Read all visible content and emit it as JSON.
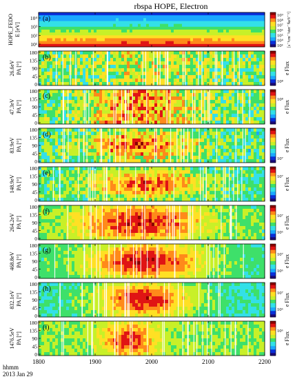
{
  "chart_data": {
    "type": "heatmap",
    "title": "rbspa HOPE, Electron",
    "x_axis": {
      "range": [
        1800,
        2200
      ],
      "ticks": [
        "1800",
        "1900",
        "2000",
        "2100",
        "2200"
      ],
      "label_time": "hhmm",
      "label_date": "2013 Jan 29"
    },
    "panels": [
      {
        "letter": "(a)",
        "ylabel": [
          "HOPE_FEDO",
          "E [eV]"
        ],
        "yticks": [
          "10⁴",
          "10³",
          "10²",
          "10¹"
        ],
        "cbar_label": "[s⁻¹cm⁻²ster⁻¹keV⁻¹]",
        "cbar_ticks": [
          "10⁹",
          "10⁸",
          "10⁷",
          "10⁶",
          "10⁵",
          "10⁴",
          "10³"
        ]
      },
      {
        "letter": "(b)",
        "ylabel": [
          "26.6eV",
          "PA [°]"
        ],
        "yticks": [
          "180",
          "135",
          "90",
          "45",
          "0"
        ],
        "cbar_label": "e Flux",
        "cbar_ticks": [
          "10⁸"
        ]
      },
      {
        "letter": "(c)",
        "ylabel": [
          "47.3eV",
          "PA [°]"
        ],
        "yticks": [
          "180",
          "135",
          "90",
          "45",
          "0"
        ],
        "cbar_label": "e Flux",
        "cbar_ticks": [
          "10⁸"
        ]
      },
      {
        "letter": "(d)",
        "ylabel": [
          "83.9eV",
          "PA [°]"
        ],
        "yticks": [
          "180",
          "135",
          "90",
          "45",
          "0"
        ],
        "cbar_label": "e Flux",
        "cbar_ticks": [
          "10⁷"
        ]
      },
      {
        "letter": "(e)",
        "ylabel": [
          "148.9eV",
          "PA [°]"
        ],
        "yticks": [
          "180",
          "135",
          "90",
          "45",
          "0"
        ],
        "cbar_label": "e Flux",
        "cbar_ticks": [
          "10⁷"
        ]
      },
      {
        "letter": "(f)",
        "ylabel": [
          "264.2eV",
          "PA [°]"
        ],
        "yticks": [
          "180",
          "135",
          "90",
          "45",
          "0"
        ],
        "cbar_label": "e Flux",
        "cbar_ticks": [
          "10⁷",
          "10⁶"
        ]
      },
      {
        "letter": "(g)",
        "ylabel": [
          "468.8eV",
          "PA [°]"
        ],
        "yticks": [
          "180",
          "135",
          "90",
          "45",
          "0"
        ],
        "cbar_label": "e Flux",
        "cbar_ticks": [
          "10⁷",
          "10⁶"
        ]
      },
      {
        "letter": "(h)",
        "ylabel": [
          "832.1eV",
          "PA [°]"
        ],
        "yticks": [
          "180",
          "135",
          "90",
          "45",
          "0"
        ],
        "cbar_label": "e Flux",
        "cbar_ticks": [
          "10⁷",
          "10⁶"
        ]
      },
      {
        "letter": "(i)",
        "ylabel": [
          "1476.5eV",
          "PA [°]"
        ],
        "yticks": [
          "180",
          "135",
          "90",
          "45",
          "0"
        ],
        "cbar_label": "e Flux",
        "cbar_ticks": [
          "10⁶"
        ]
      }
    ],
    "colormap": [
      "#1b0a78",
      "#0a30d8",
      "#1aa8ff",
      "#33e0e8",
      "#3ee06a",
      "#c8f028",
      "#ffe024",
      "#ff8a1a",
      "#e01414",
      "#8a0000"
    ]
  }
}
